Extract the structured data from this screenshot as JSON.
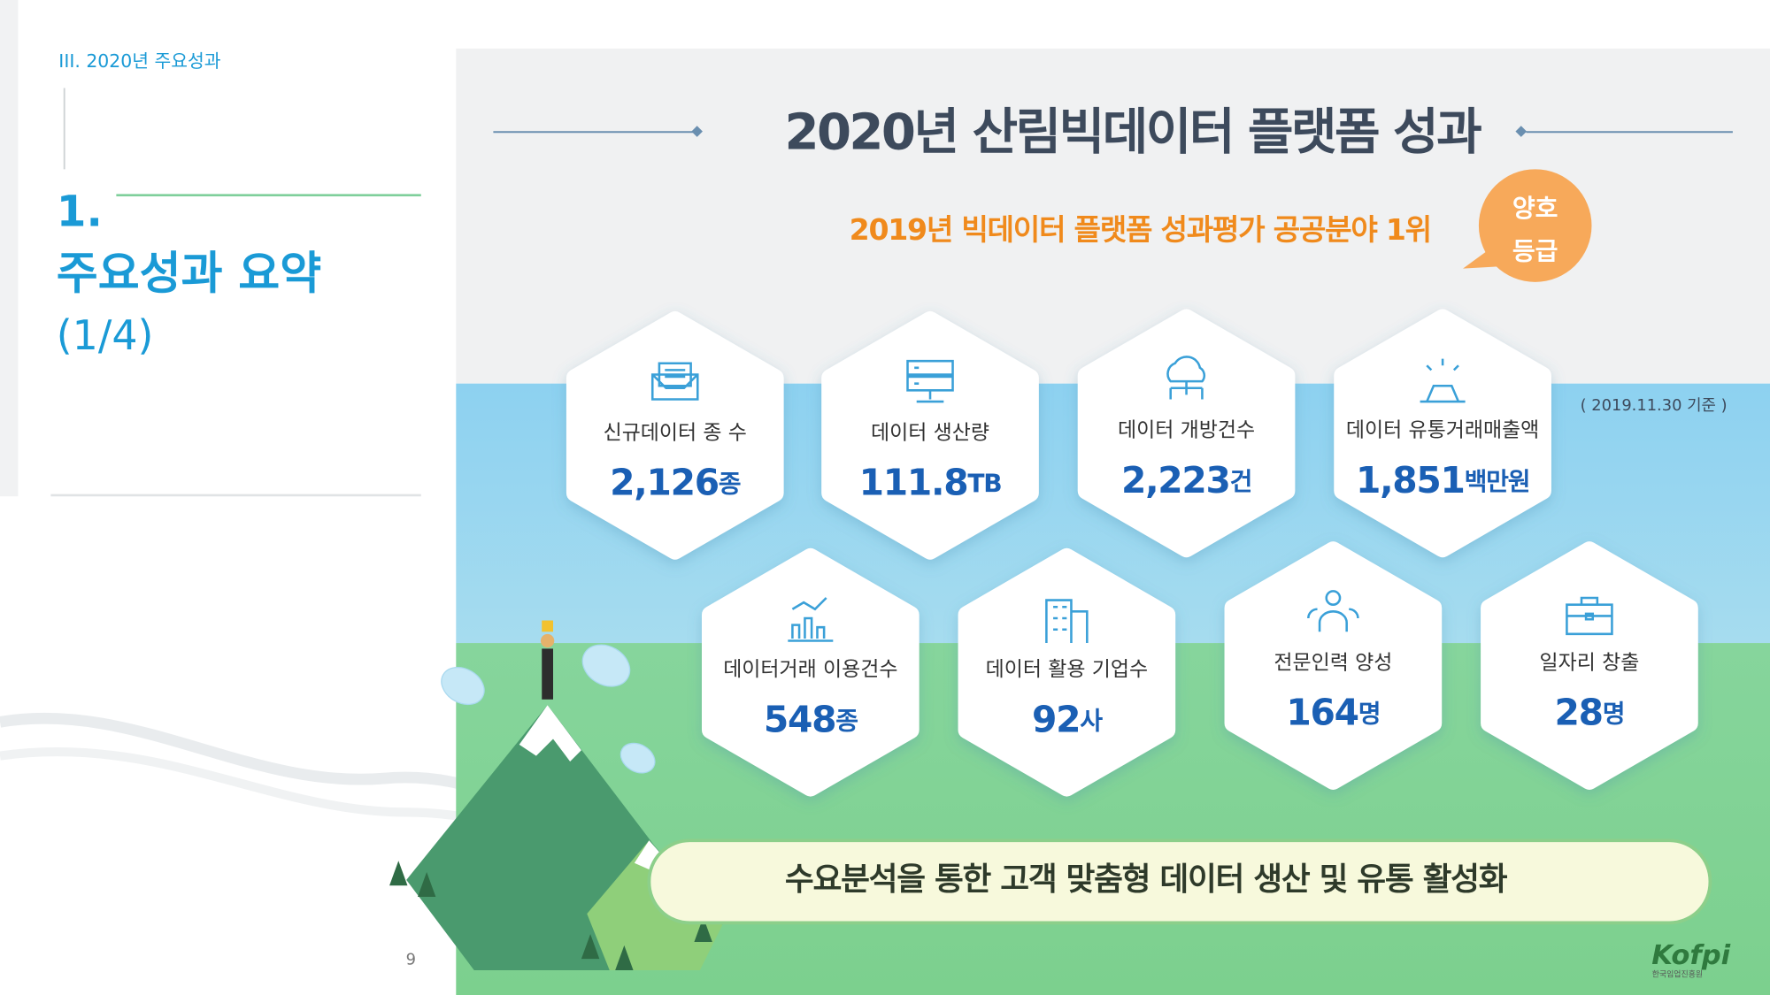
{
  "header": {
    "section": "III. 2020년 주요성과",
    "number": "1.",
    "title": "주요성과 요약",
    "page_part": "(1/4)"
  },
  "main": {
    "title": "2020년 산림빅데이터 플랫폼 성과",
    "subtitle": "2019년 빅데이터 플랫폼 성과평가 공공분야 1위",
    "badge": [
      "양호",
      "등급"
    ],
    "note": "( 2019.11.30  기준 )"
  },
  "stats": [
    {
      "label": "신규데이터 종 수",
      "value": "2,126",
      "unit": "종"
    },
    {
      "label": "데이터 생산량",
      "value": "111.8",
      "unit": "TB"
    },
    {
      "label": "데이터 개방건수",
      "value": "2,223",
      "unit": "건"
    },
    {
      "label": "데이터 유통거래매출액",
      "value": "1,851",
      "unit": "백만원"
    },
    {
      "label": "데이터거래 이용건수",
      "value": "548",
      "unit": "종"
    },
    {
      "label": "데이터 활용 기업수",
      "value": "92",
      "unit": "사"
    },
    {
      "label": "전문인력 양성",
      "value": "164",
      "unit": "명"
    },
    {
      "label": "일자리 창출",
      "value": "28",
      "unit": "명"
    }
  ],
  "banner": "수요분석을 통한 고객 맞춤형 데이터 생산 및 유통 활성화",
  "footer": {
    "page": "9",
    "logo": "Kofpi",
    "logo_sub": "한국임업진흥원"
  }
}
